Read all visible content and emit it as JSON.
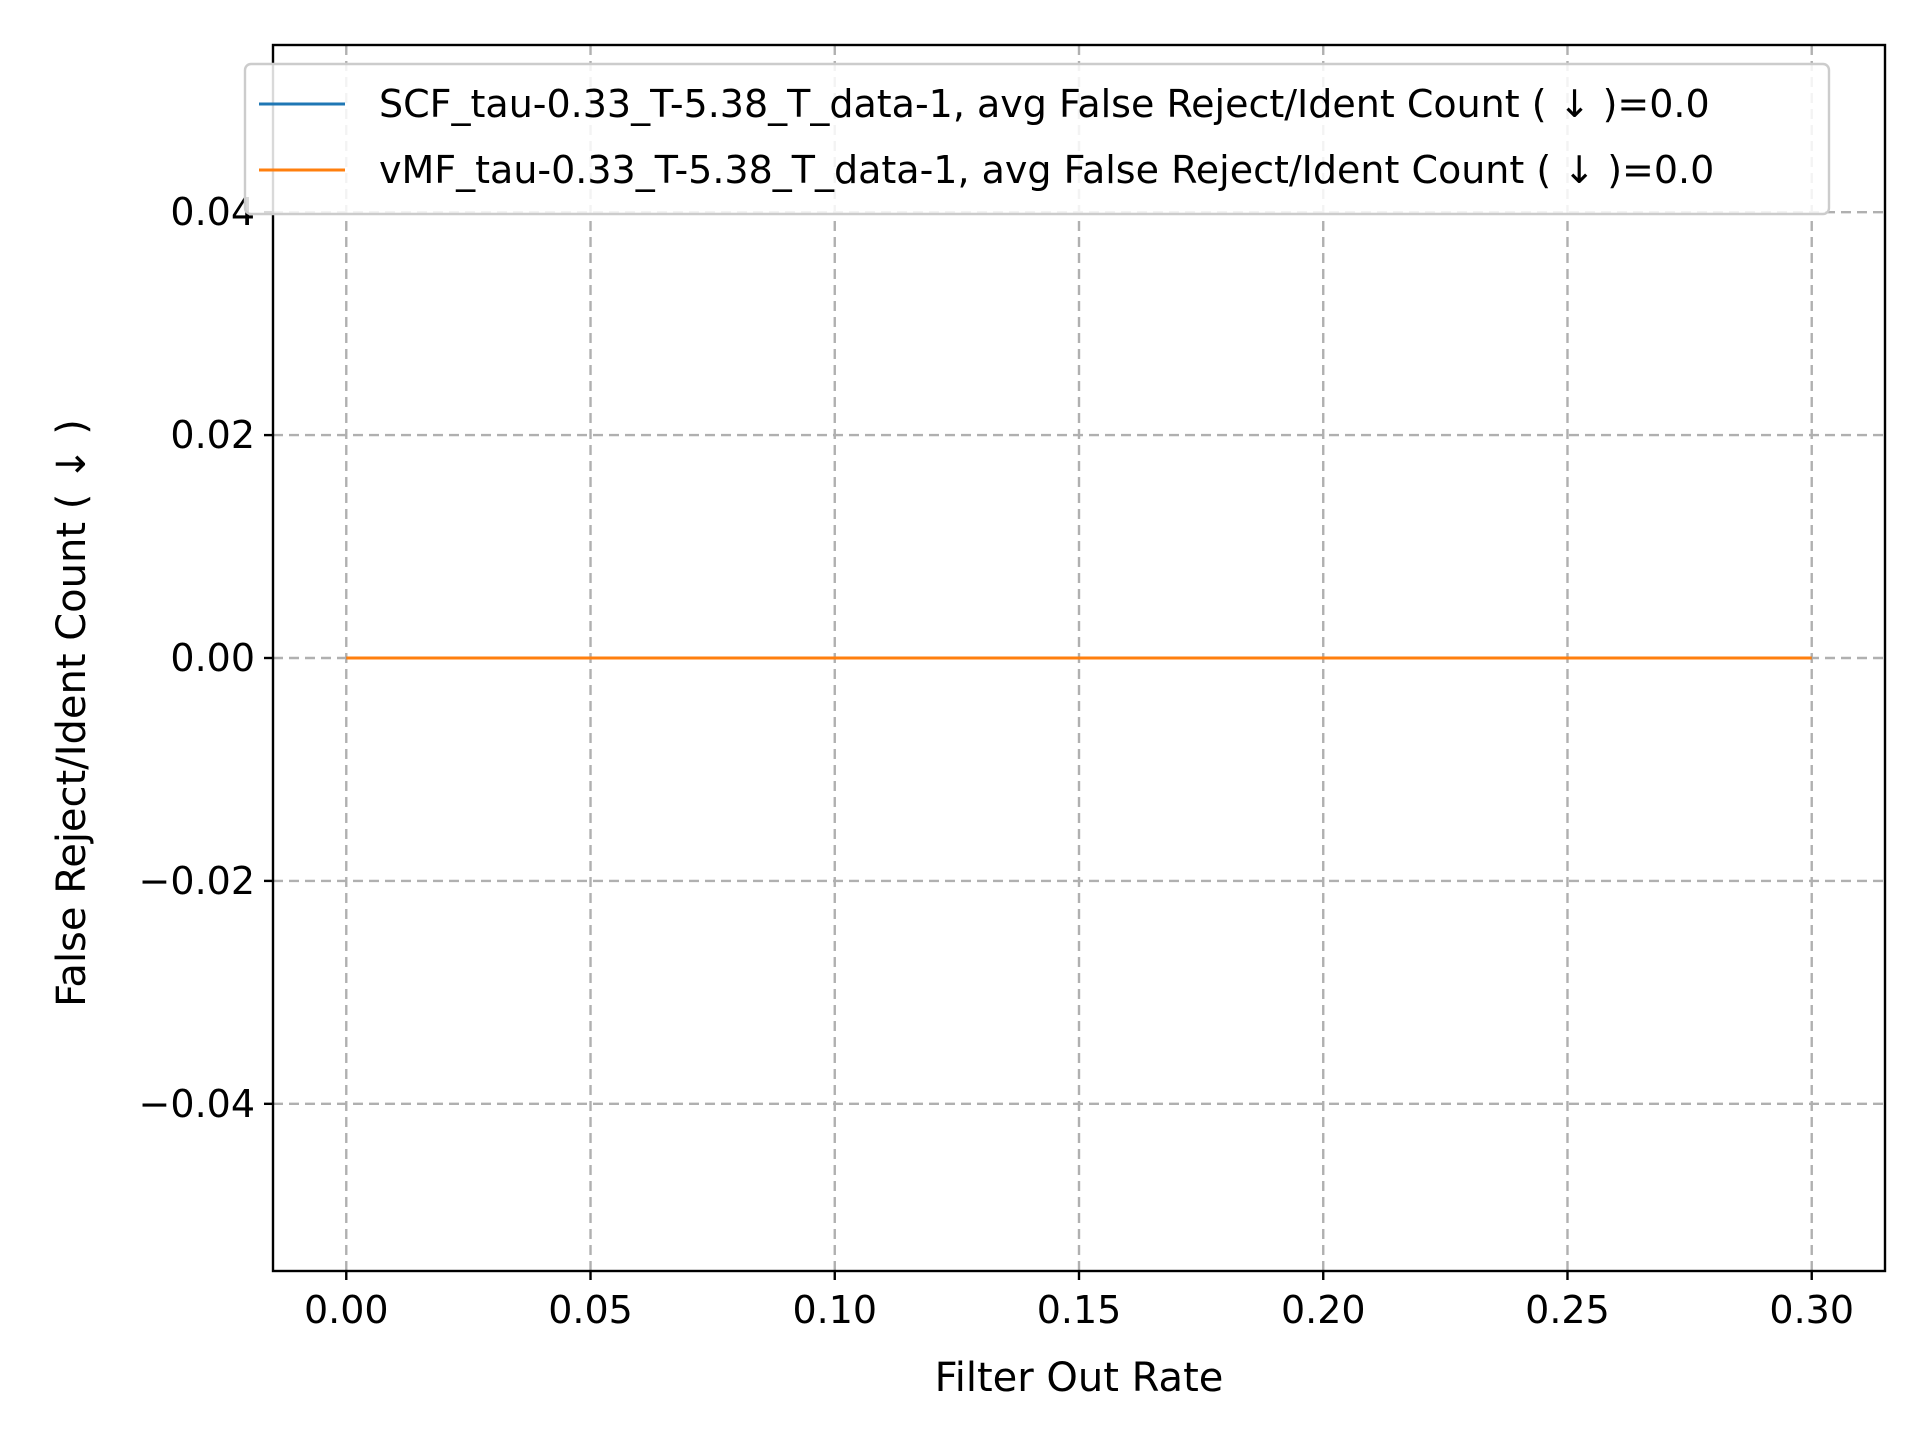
{
  "chart_data": {
    "type": "line",
    "title": "",
    "xlabel": "Filter Out Rate",
    "ylabel": "False Reject/Ident Count ( ↓ )",
    "xlim": [
      -0.015,
      0.315
    ],
    "ylim": [
      -0.055,
      0.055
    ],
    "x_ticks": [
      0.0,
      0.05,
      0.1,
      0.15,
      0.2,
      0.25,
      0.3
    ],
    "x_tick_labels": [
      "0.00",
      "0.05",
      "0.10",
      "0.15",
      "0.20",
      "0.25",
      "0.30"
    ],
    "y_ticks": [
      -0.04,
      -0.02,
      0.0,
      0.02,
      0.04
    ],
    "y_tick_labels": [
      "−0.04",
      "−0.02",
      "0.00",
      "0.02",
      "0.04"
    ],
    "grid": true,
    "legend_position": "top-right",
    "series": [
      {
        "name": "SCF_tau-0.33_T-5.38_T_data-1, avg False Reject/Ident Count ( ↓ )=0.0",
        "color": "#1f77b4",
        "x": [
          0.0,
          0.05,
          0.1,
          0.15,
          0.2,
          0.25,
          0.3
        ],
        "y": [
          0,
          0,
          0,
          0,
          0,
          0,
          0
        ]
      },
      {
        "name": "vMF_tau-0.33_T-5.38_T_data-1, avg False Reject/Ident Count ( ↓ )=0.0",
        "color": "#ff7f0e",
        "x": [
          0.0,
          0.05,
          0.1,
          0.15,
          0.2,
          0.25,
          0.3
        ],
        "y": [
          0,
          0,
          0,
          0,
          0,
          0,
          0
        ]
      }
    ]
  }
}
